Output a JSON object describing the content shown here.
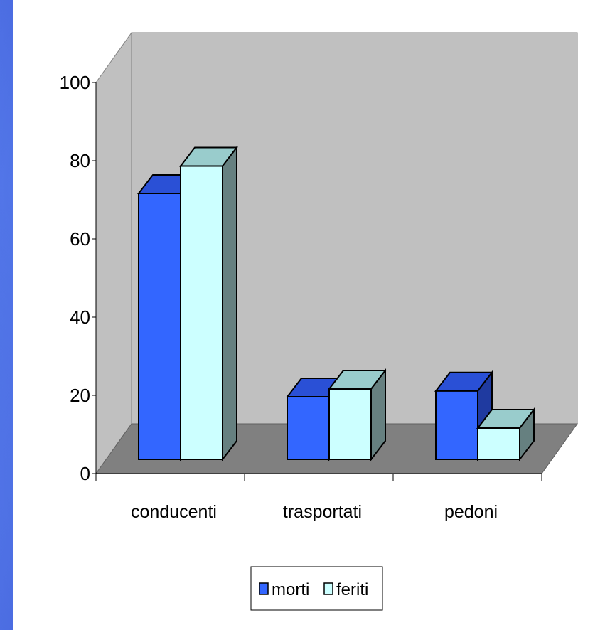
{
  "chart_data": {
    "type": "bar",
    "title": "",
    "xlabel": "",
    "ylabel": "",
    "categories": [
      "conducenti",
      "trasportati",
      "pedoni"
    ],
    "series": [
      {
        "name": "morti",
        "values": [
          68,
          16,
          17.5
        ]
      },
      {
        "name": "feriti",
        "values": [
          75,
          18,
          8
        ]
      }
    ],
    "ylim": [
      0,
      100
    ],
    "yticks": [
      "0",
      "20",
      "40",
      "60",
      "80",
      "100"
    ],
    "grid": false,
    "legend_position": "bottom",
    "colors": {
      "morti_front": "#3366ff",
      "morti_top": "#2a50d6",
      "morti_side": "#1f3aa0",
      "feriti_front": "#ccffff",
      "feriti_top": "#99cccc",
      "feriti_side": "#668080",
      "back_wall": "#c0c0c0",
      "floor": "#808080"
    }
  }
}
